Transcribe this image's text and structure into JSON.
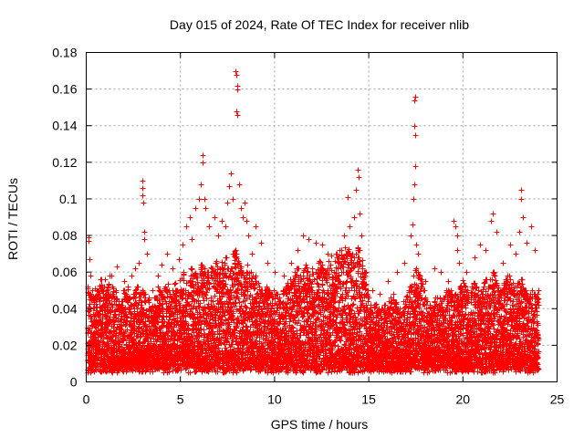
{
  "chart_data": {
    "type": "scatter",
    "title": "Day 015 of 2024, Rate Of TEC Index for receiver nlib",
    "xlabel": "GPS time / hours",
    "ylabel": "ROTI / TECUs",
    "xlim": [
      0,
      25
    ],
    "ylim": [
      0,
      0.18
    ],
    "xticks": [
      0,
      5,
      10,
      15,
      20,
      25
    ],
    "xtick_labels": [
      "0",
      "5",
      "10",
      "15",
      "20",
      "25"
    ],
    "yticks": [
      0,
      0.02,
      0.04,
      0.06,
      0.08,
      0.1,
      0.12,
      0.14,
      0.16,
      0.18
    ],
    "ytick_labels": [
      "0",
      "0.02",
      "0.04",
      "0.06",
      "0.08",
      "0.1",
      "0.12",
      "0.14",
      "0.16",
      "0.18"
    ],
    "grid": true,
    "marker": "+",
    "color": "#ff0000",
    "series": [
      {
        "name": "ROTI",
        "points": [
          [
            0.1,
            0.079
          ],
          [
            0.1,
            0.077
          ],
          [
            0.15,
            0.067
          ],
          [
            0.2,
            0.058
          ],
          [
            0.3,
            0.05
          ],
          [
            0.5,
            0.045
          ],
          [
            0.8,
            0.052
          ],
          [
            1.0,
            0.056
          ],
          [
            1.3,
            0.048
          ],
          [
            1.6,
            0.063
          ],
          [
            2.0,
            0.055
          ],
          [
            2.4,
            0.058
          ],
          [
            2.6,
            0.062
          ],
          [
            2.8,
            0.065
          ],
          [
            3.0,
            0.11
          ],
          [
            3.0,
            0.106
          ],
          [
            3.0,
            0.102
          ],
          [
            3.05,
            0.098
          ],
          [
            3.1,
            0.082
          ],
          [
            3.1,
            0.078
          ],
          [
            3.2,
            0.07
          ],
          [
            3.5,
            0.05
          ],
          [
            3.8,
            0.058
          ],
          [
            4.0,
            0.064
          ],
          [
            4.3,
            0.07
          ],
          [
            4.6,
            0.062
          ],
          [
            4.9,
            0.067
          ],
          [
            5.1,
            0.075
          ],
          [
            5.3,
            0.085
          ],
          [
            5.5,
            0.09
          ],
          [
            5.6,
            0.078
          ],
          [
            5.8,
            0.095
          ],
          [
            6.0,
            0.1
          ],
          [
            6.1,
            0.108
          ],
          [
            6.2,
            0.124
          ],
          [
            6.2,
            0.12
          ],
          [
            6.25,
            0.1
          ],
          [
            6.3,
            0.095
          ],
          [
            6.5,
            0.085
          ],
          [
            6.8,
            0.09
          ],
          [
            7.0,
            0.08
          ],
          [
            7.2,
            0.088
          ],
          [
            7.4,
            0.085
          ],
          [
            7.5,
            0.098
          ],
          [
            7.6,
            0.107
          ],
          [
            7.7,
            0.114
          ],
          [
            7.8,
            0.1
          ],
          [
            7.9,
            0.17
          ],
          [
            7.95,
            0.168
          ],
          [
            8.0,
            0.162
          ],
          [
            8.0,
            0.16
          ],
          [
            7.95,
            0.148
          ],
          [
            8.0,
            0.146
          ],
          [
            8.1,
            0.108
          ],
          [
            8.2,
            0.095
          ],
          [
            8.3,
            0.09
          ],
          [
            8.4,
            0.098
          ],
          [
            8.5,
            0.088
          ],
          [
            8.6,
            0.08
          ],
          [
            8.8,
            0.07
          ],
          [
            9.0,
            0.085
          ],
          [
            9.3,
            0.076
          ],
          [
            9.6,
            0.065
          ],
          [
            10.0,
            0.06
          ],
          [
            10.5,
            0.058
          ],
          [
            10.9,
            0.065
          ],
          [
            11.2,
            0.072
          ],
          [
            11.5,
            0.08
          ],
          [
            11.8,
            0.078
          ],
          [
            12.2,
            0.076
          ],
          [
            12.5,
            0.075
          ],
          [
            12.8,
            0.07
          ],
          [
            13.0,
            0.069
          ],
          [
            13.4,
            0.065
          ],
          [
            13.7,
            0.08
          ],
          [
            13.8,
            0.07
          ],
          [
            13.9,
            0.101
          ],
          [
            14.0,
            0.085
          ],
          [
            14.2,
            0.09
          ],
          [
            14.3,
            0.105
          ],
          [
            14.4,
            0.116
          ],
          [
            14.45,
            0.112
          ],
          [
            14.5,
            0.092
          ],
          [
            14.6,
            0.08
          ],
          [
            14.8,
            0.06
          ],
          [
            15.2,
            0.05
          ],
          [
            15.6,
            0.048
          ],
          [
            16.0,
            0.055
          ],
          [
            16.5,
            0.06
          ],
          [
            16.9,
            0.065
          ],
          [
            17.2,
            0.08
          ],
          [
            17.3,
            0.086
          ],
          [
            17.35,
            0.1
          ],
          [
            17.4,
            0.108
          ],
          [
            17.45,
            0.118
          ],
          [
            17.45,
            0.135
          ],
          [
            17.4,
            0.14
          ],
          [
            17.4,
            0.154
          ],
          [
            17.45,
            0.156
          ],
          [
            17.5,
            0.075
          ],
          [
            17.6,
            0.07
          ],
          [
            18.0,
            0.055
          ],
          [
            18.5,
            0.062
          ],
          [
            18.8,
            0.06
          ],
          [
            19.2,
            0.055
          ],
          [
            19.5,
            0.088
          ],
          [
            19.6,
            0.085
          ],
          [
            19.7,
            0.08
          ],
          [
            19.7,
            0.072
          ],
          [
            19.8,
            0.065
          ],
          [
            20.2,
            0.06
          ],
          [
            20.6,
            0.068
          ],
          [
            20.9,
            0.075
          ],
          [
            21.2,
            0.072
          ],
          [
            21.5,
            0.088
          ],
          [
            21.6,
            0.092
          ],
          [
            21.8,
            0.082
          ],
          [
            22.1,
            0.065
          ],
          [
            22.5,
            0.075
          ],
          [
            22.8,
            0.07
          ],
          [
            23.0,
            0.082
          ],
          [
            23.1,
            0.1
          ],
          [
            23.1,
            0.105
          ],
          [
            23.2,
            0.09
          ],
          [
            23.4,
            0.076
          ],
          [
            23.6,
            0.085
          ],
          [
            23.8,
            0.072
          ],
          [
            24.0,
            0.05
          ]
        ],
        "band": {
          "resolution_hours": 0.1,
          "upper": [
            0.05,
            0.052,
            0.048,
            0.046,
            0.05,
            0.052,
            0.05,
            0.054,
            0.056,
            0.052,
            0.048,
            0.054,
            0.054,
            0.058,
            0.052,
            0.046,
            0.05,
            0.044,
            0.04,
            0.044,
            0.05,
            0.048,
            0.052,
            0.046,
            0.042,
            0.048,
            0.05,
            0.052,
            0.048,
            0.05,
            0.056,
            0.048,
            0.042,
            0.046,
            0.04,
            0.044,
            0.048,
            0.046,
            0.052,
            0.05,
            0.048,
            0.046,
            0.052,
            0.055,
            0.05,
            0.046,
            0.05,
            0.054,
            0.05,
            0.048,
            0.056,
            0.058,
            0.06,
            0.054,
            0.05,
            0.058,
            0.062,
            0.058,
            0.06,
            0.058,
            0.06,
            0.066,
            0.064,
            0.062,
            0.06,
            0.058,
            0.064,
            0.062,
            0.06,
            0.066,
            0.064,
            0.062,
            0.066,
            0.064,
            0.068,
            0.062,
            0.058,
            0.062,
            0.07,
            0.072,
            0.07,
            0.066,
            0.064,
            0.062,
            0.058,
            0.06,
            0.064,
            0.06,
            0.058,
            0.056,
            0.058,
            0.054,
            0.052,
            0.05,
            0.048,
            0.05,
            0.052,
            0.05,
            0.048,
            0.046,
            0.05,
            0.048,
            0.046,
            0.044,
            0.046,
            0.05,
            0.052,
            0.054,
            0.056,
            0.054,
            0.056,
            0.06,
            0.062,
            0.06,
            0.058,
            0.06,
            0.062,
            0.064,
            0.058,
            0.06,
            0.062,
            0.064,
            0.06,
            0.062,
            0.066,
            0.064,
            0.062,
            0.06,
            0.062,
            0.066,
            0.064,
            0.062,
            0.066,
            0.07,
            0.068,
            0.072,
            0.07,
            0.068,
            0.074,
            0.076,
            0.072,
            0.07,
            0.068,
            0.07,
            0.074,
            0.072,
            0.068,
            0.064,
            0.06,
            0.05,
            0.046,
            0.044,
            0.04,
            0.042,
            0.044,
            0.04,
            0.038,
            0.04,
            0.042,
            0.038,
            0.04,
            0.044,
            0.046,
            0.048,
            0.044,
            0.04,
            0.038,
            0.04,
            0.042,
            0.044,
            0.048,
            0.05,
            0.052,
            0.056,
            0.058,
            0.062,
            0.06,
            0.058,
            0.056,
            0.05,
            0.046,
            0.044,
            0.042,
            0.04,
            0.04,
            0.044,
            0.046,
            0.048,
            0.046,
            0.044,
            0.046,
            0.05,
            0.052,
            0.05,
            0.048,
            0.046,
            0.048,
            0.05,
            0.052,
            0.054,
            0.056,
            0.054,
            0.05,
            0.048,
            0.05,
            0.052,
            0.054,
            0.052,
            0.05,
            0.048,
            0.05,
            0.054,
            0.056,
            0.054,
            0.052,
            0.056,
            0.06,
            0.058,
            0.054,
            0.052,
            0.05,
            0.052,
            0.054,
            0.056,
            0.058,
            0.056,
            0.054,
            0.05,
            0.052,
            0.054,
            0.058,
            0.056,
            0.052,
            0.05,
            0.048,
            0.046,
            0.048,
            0.05,
            0.048,
            0.046,
            0.048
          ],
          "lower": 0.005
        }
      }
    ]
  }
}
